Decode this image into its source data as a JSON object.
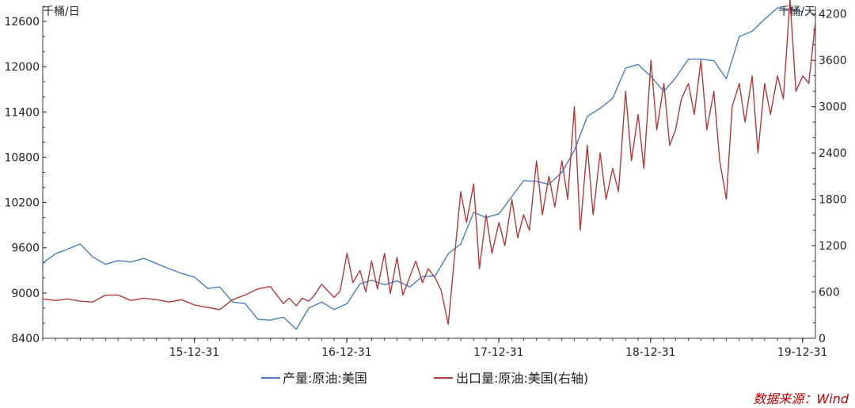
{
  "chart_data": {
    "type": "line",
    "title": "",
    "left_axis_unit": "千桶/日",
    "right_axis_unit": "千桶/天",
    "left_ylim": [
      8400,
      12800
    ],
    "right_ylim": [
      0,
      4300
    ],
    "left_ticks": [
      8400,
      9000,
      9600,
      10200,
      10800,
      11400,
      12000,
      12600
    ],
    "right_ticks": [
      0,
      600,
      1200,
      1800,
      2400,
      3000,
      3600,
      4200
    ],
    "x_range": [
      "2015-01-01",
      "2020-01-31"
    ],
    "x_ticks": [
      {
        "date": "2015-12-31",
        "label": "15-12-31"
      },
      {
        "date": "2016-12-31",
        "label": "16-12-31"
      },
      {
        "date": "2017-12-31",
        "label": "17-12-31"
      },
      {
        "date": "2018-12-31",
        "label": "18-12-31"
      },
      {
        "date": "2019-12-31",
        "label": "19-12-31"
      }
    ],
    "grid": false,
    "legend_placement": "bottom",
    "source": "数据来源：Wind",
    "series": [
      {
        "name": "产量:原油:美国",
        "axis": "left",
        "color": "#4a7ebb",
        "points": [
          [
            "2015-01-01",
            9400
          ],
          [
            "2015-02-01",
            9520
          ],
          [
            "2015-03-01",
            9580
          ],
          [
            "2015-04-01",
            9650
          ],
          [
            "2015-05-01",
            9480
          ],
          [
            "2015-06-01",
            9380
          ],
          [
            "2015-07-01",
            9430
          ],
          [
            "2015-08-01",
            9410
          ],
          [
            "2015-09-01",
            9460
          ],
          [
            "2015-10-01",
            9390
          ],
          [
            "2015-11-01",
            9320
          ],
          [
            "2015-12-01",
            9260
          ],
          [
            "2016-01-01",
            9210
          ],
          [
            "2016-02-01",
            9060
          ],
          [
            "2016-03-01",
            9080
          ],
          [
            "2016-04-01",
            8880
          ],
          [
            "2016-05-01",
            8860
          ],
          [
            "2016-06-01",
            8650
          ],
          [
            "2016-07-01",
            8640
          ],
          [
            "2016-08-01",
            8680
          ],
          [
            "2016-09-01",
            8520
          ],
          [
            "2016-10-01",
            8800
          ],
          [
            "2016-11-01",
            8880
          ],
          [
            "2016-12-01",
            8780
          ],
          [
            "2017-01-01",
            8860
          ],
          [
            "2017-02-01",
            9120
          ],
          [
            "2017-03-01",
            9170
          ],
          [
            "2017-04-01",
            9110
          ],
          [
            "2017-05-01",
            9160
          ],
          [
            "2017-06-01",
            9080
          ],
          [
            "2017-07-01",
            9220
          ],
          [
            "2017-08-01",
            9230
          ],
          [
            "2017-09-01",
            9520
          ],
          [
            "2017-10-01",
            9650
          ],
          [
            "2017-11-01",
            10070
          ],
          [
            "2017-12-01",
            10000
          ],
          [
            "2018-01-01",
            10050
          ],
          [
            "2018-02-01",
            10280
          ],
          [
            "2018-03-01",
            10490
          ],
          [
            "2018-04-01",
            10480
          ],
          [
            "2018-05-01",
            10440
          ],
          [
            "2018-06-01",
            10600
          ],
          [
            "2018-07-01",
            10890
          ],
          [
            "2018-08-01",
            11340
          ],
          [
            "2018-09-01",
            11450
          ],
          [
            "2018-10-01",
            11580
          ],
          [
            "2018-11-01",
            11980
          ],
          [
            "2018-12-01",
            12030
          ],
          [
            "2019-01-01",
            11870
          ],
          [
            "2019-02-01",
            11670
          ],
          [
            "2019-03-01",
            11850
          ],
          [
            "2019-04-01",
            12100
          ],
          [
            "2019-05-01",
            12100
          ],
          [
            "2019-06-01",
            12080
          ],
          [
            "2019-07-01",
            11840
          ],
          [
            "2019-08-01",
            12400
          ],
          [
            "2019-09-01",
            12470
          ],
          [
            "2019-10-01",
            12630
          ],
          [
            "2019-11-01",
            12780
          ],
          [
            "2019-12-01",
            12760
          ],
          [
            "2020-01-01",
            12730
          ]
        ]
      },
      {
        "name": "出口量:原油:美国(右轴)",
        "axis": "right",
        "color": "#b03a3a",
        "points": [
          [
            "2015-01-01",
            510
          ],
          [
            "2015-02-01",
            490
          ],
          [
            "2015-03-01",
            510
          ],
          [
            "2015-04-01",
            480
          ],
          [
            "2015-05-01",
            470
          ],
          [
            "2015-06-01",
            560
          ],
          [
            "2015-07-01",
            560
          ],
          [
            "2015-08-01",
            490
          ],
          [
            "2015-09-01",
            520
          ],
          [
            "2015-10-01",
            500
          ],
          [
            "2015-11-01",
            470
          ],
          [
            "2015-12-01",
            500
          ],
          [
            "2016-01-01",
            430
          ],
          [
            "2016-02-01",
            400
          ],
          [
            "2016-03-01",
            370
          ],
          [
            "2016-04-01",
            500
          ],
          [
            "2016-05-01",
            560
          ],
          [
            "2016-06-01",
            640
          ],
          [
            "2016-07-01",
            670
          ],
          [
            "2016-08-01",
            450
          ],
          [
            "2016-08-15",
            520
          ],
          [
            "2016-09-01",
            420
          ],
          [
            "2016-09-15",
            520
          ],
          [
            "2016-10-01",
            480
          ],
          [
            "2016-10-15",
            560
          ],
          [
            "2016-11-01",
            700
          ],
          [
            "2016-11-15",
            620
          ],
          [
            "2016-12-01",
            530
          ],
          [
            "2016-12-15",
            610
          ],
          [
            "2017-01-01",
            1100
          ],
          [
            "2017-01-15",
            720
          ],
          [
            "2017-02-01",
            880
          ],
          [
            "2017-02-15",
            600
          ],
          [
            "2017-03-01",
            1000
          ],
          [
            "2017-03-15",
            640
          ],
          [
            "2017-04-01",
            1100
          ],
          [
            "2017-04-15",
            580
          ],
          [
            "2017-05-01",
            1050
          ],
          [
            "2017-05-15",
            560
          ],
          [
            "2017-06-01",
            800
          ],
          [
            "2017-06-15",
            1000
          ],
          [
            "2017-07-01",
            720
          ],
          [
            "2017-07-15",
            900
          ],
          [
            "2017-08-01",
            780
          ],
          [
            "2017-08-15",
            620
          ],
          [
            "2017-09-01",
            180
          ],
          [
            "2017-09-15",
            1000
          ],
          [
            "2017-10-01",
            1900
          ],
          [
            "2017-10-15",
            1500
          ],
          [
            "2017-11-01",
            2000
          ],
          [
            "2017-11-15",
            900
          ],
          [
            "2017-12-01",
            1600
          ],
          [
            "2017-12-15",
            1100
          ],
          [
            "2018-01-01",
            1500
          ],
          [
            "2018-01-15",
            1200
          ],
          [
            "2018-02-01",
            1800
          ],
          [
            "2018-02-15",
            1300
          ],
          [
            "2018-03-01",
            1600
          ],
          [
            "2018-03-15",
            1400
          ],
          [
            "2018-04-01",
            2300
          ],
          [
            "2018-04-15",
            1600
          ],
          [
            "2018-05-01",
            2100
          ],
          [
            "2018-05-15",
            1700
          ],
          [
            "2018-06-01",
            2300
          ],
          [
            "2018-06-15",
            1800
          ],
          [
            "2018-07-01",
            3000
          ],
          [
            "2018-07-15",
            1400
          ],
          [
            "2018-08-01",
            2500
          ],
          [
            "2018-08-15",
            1600
          ],
          [
            "2018-09-01",
            2400
          ],
          [
            "2018-09-15",
            1800
          ],
          [
            "2018-10-01",
            2200
          ],
          [
            "2018-10-15",
            1900
          ],
          [
            "2018-11-01",
            3200
          ],
          [
            "2018-11-15",
            2300
          ],
          [
            "2018-12-01",
            2900
          ],
          [
            "2018-12-15",
            2200
          ],
          [
            "2019-01-01",
            3600
          ],
          [
            "2019-01-15",
            2700
          ],
          [
            "2019-02-01",
            3300
          ],
          [
            "2019-02-15",
            2500
          ],
          [
            "2019-03-01",
            2700
          ],
          [
            "2019-03-15",
            3100
          ],
          [
            "2019-04-01",
            3300
          ],
          [
            "2019-04-15",
            2900
          ],
          [
            "2019-05-01",
            3600
          ],
          [
            "2019-05-15",
            2700
          ],
          [
            "2019-06-01",
            3200
          ],
          [
            "2019-06-15",
            2300
          ],
          [
            "2019-07-01",
            1800
          ],
          [
            "2019-07-15",
            3000
          ],
          [
            "2019-08-01",
            3300
          ],
          [
            "2019-08-15",
            2800
          ],
          [
            "2019-09-01",
            3400
          ],
          [
            "2019-09-15",
            2400
          ],
          [
            "2019-10-01",
            3300
          ],
          [
            "2019-10-15",
            2900
          ],
          [
            "2019-11-01",
            3400
          ],
          [
            "2019-11-15",
            3100
          ],
          [
            "2019-12-01",
            4400
          ],
          [
            "2019-12-15",
            3200
          ],
          [
            "2020-01-01",
            3400
          ],
          [
            "2020-01-15",
            3300
          ],
          [
            "2020-01-31",
            4100
          ]
        ]
      }
    ]
  }
}
